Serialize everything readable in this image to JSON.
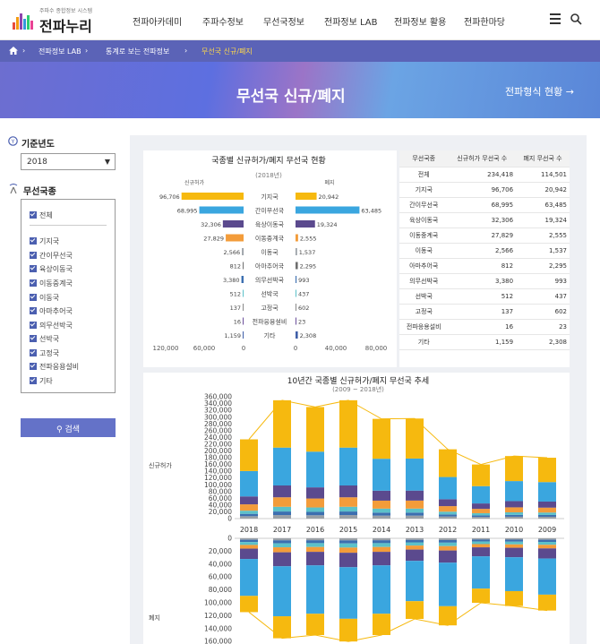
{
  "header": {
    "logo_small": "주파수 종합정보 시스템",
    "logo_main": "전파누리",
    "menu": [
      "전파아카데미",
      "주파수정보",
      "무선국정보",
      "전파정보 LAB",
      "전파정보 활용",
      "전파한마당"
    ]
  },
  "breadcrumb": {
    "home_icon": "home-icon",
    "items": [
      "전파정보 LAB",
      "통계로 보는 전파정보",
      "무선국 신규/폐지"
    ]
  },
  "hero": {
    "title": "무선국 신규/폐지",
    "link": "전파형식 현황"
  },
  "filters": {
    "year_label": "기준년도",
    "year_value": "2018",
    "type_label": "무선국종",
    "types": [
      "전체",
      "기지국",
      "간이무선국",
      "육상이동국",
      "이동중계국",
      "이동국",
      "아마추어국",
      "의무선박국",
      "선박국",
      "고정국",
      "전파응용설비",
      "기타"
    ],
    "search_button": "검색"
  },
  "chart_data": [
    {
      "type": "bar",
      "title": "국종별 신규허가/폐지 무선국 현황",
      "subtitle": "(2018년)",
      "series": [
        {
          "name": "신규허가",
          "values": [
            96706,
            68995,
            32306,
            27829,
            2566,
            812,
            3380,
            512,
            137,
            16,
            1159
          ]
        },
        {
          "name": "폐지",
          "values": [
            20942,
            63485,
            19324,
            2555,
            1537,
            2295,
            993,
            437,
            602,
            23,
            2308
          ]
        }
      ],
      "categories": [
        "기지국",
        "간이무선국",
        "육상이동국",
        "이동중계국",
        "이동국",
        "아마추어국",
        "의무선박국",
        "선박국",
        "고정국",
        "전파응용설비",
        "기타"
      ],
      "left_ticks": [
        "120,000",
        "60,000",
        "0"
      ],
      "right_ticks": [
        "0",
        "40,000",
        "80,000"
      ],
      "colors": [
        "#f6b90f",
        "#3aa6df",
        "#5b4a8e",
        "#f39c3a",
        "#9aa0a6",
        "#6e6e6e",
        "#3c6fb0",
        "#5cc1c9",
        "#888888",
        "#6b4e9b",
        "#3f5ea8"
      ]
    },
    {
      "type": "table",
      "columns": [
        "무선국종",
        "신규허가 무선국 수",
        "폐지 무선국 수"
      ],
      "rows": [
        [
          "전체",
          "234,418",
          "114,501"
        ],
        [
          "기지국",
          "96,706",
          "20,942"
        ],
        [
          "간이무선국",
          "68,995",
          "63,485"
        ],
        [
          "육상이동국",
          "32,306",
          "19,324"
        ],
        [
          "이동중계국",
          "27,829",
          "2,555"
        ],
        [
          "이동국",
          "2,566",
          "1,537"
        ],
        [
          "아마추어국",
          "812",
          "2,295"
        ],
        [
          "의무선박국",
          "3,380",
          "993"
        ],
        [
          "선박국",
          "512",
          "437"
        ],
        [
          "고정국",
          "137",
          "602"
        ],
        [
          "전파응용설비",
          "16",
          "23"
        ],
        [
          "기타",
          "1,159",
          "2,308"
        ]
      ]
    },
    {
      "type": "bar",
      "title": "10년간 국종별 신규허가/폐지 무선국 추세",
      "subtitle": "(2009 ~ 2018년)",
      "categories": [
        "2018",
        "2017",
        "2016",
        "2015",
        "2014",
        "2013",
        "2012",
        "2011",
        "2010",
        "2009"
      ],
      "upper_label": "신규허가",
      "lower_label": "폐지",
      "upper_ticks": [
        "360,000",
        "340,000",
        "320,000",
        "300,000",
        "280,000",
        "260,000",
        "240,000",
        "220,000",
        "200,000",
        "180,000",
        "160,000",
        "140,000",
        "120,000",
        "100,000",
        "80,000",
        "60,000",
        "40,000",
        "20,000",
        "0"
      ],
      "lower_ticks": [
        "0",
        "20,000",
        "40,000",
        "60,000",
        "80,000",
        "100,000",
        "120,000",
        "140,000",
        "160,000"
      ],
      "new_totals": [
        234418,
        350000,
        330000,
        350000,
        295000,
        296000,
        205000,
        160000,
        185000,
        180000
      ],
      "closed_totals": [
        114501,
        155000,
        150000,
        160000,
        150000,
        125000,
        135000,
        100000,
        105000,
        112000
      ]
    }
  ]
}
